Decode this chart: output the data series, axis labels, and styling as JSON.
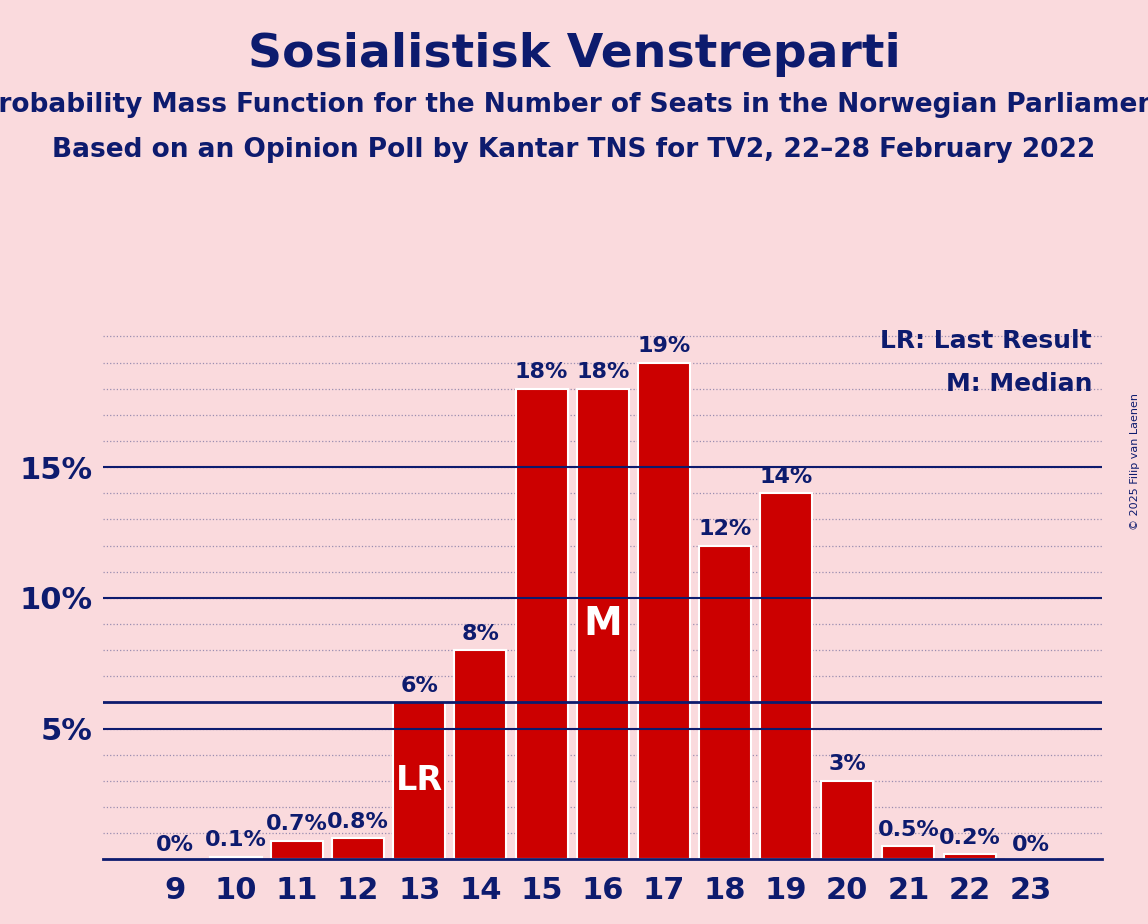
{
  "title": "Sosialistisk Venstreparti",
  "subtitle1": "Probability Mass Function for the Number of Seats in the Norwegian Parliament",
  "subtitle2": "Based on an Opinion Poll by Kantar TNS for TV2, 22–28 February 2022",
  "copyright": "© 2025 Filip van Laenen",
  "categories": [
    9,
    10,
    11,
    12,
    13,
    14,
    15,
    16,
    17,
    18,
    19,
    20,
    21,
    22,
    23
  ],
  "values": [
    0.0,
    0.1,
    0.7,
    0.8,
    6.0,
    8.0,
    18.0,
    18.0,
    19.0,
    12.0,
    14.0,
    3.0,
    0.5,
    0.2,
    0.0
  ],
  "bar_labels": [
    "0%",
    "0.1%",
    "0.7%",
    "0.8%",
    "6%",
    "8%",
    "18%",
    "18%",
    "19%",
    "12%",
    "14%",
    "3%",
    "0.5%",
    "0.2%",
    "0%"
  ],
  "bar_color": "#cc0000",
  "bar_edge_color": "#ffffff",
  "background_color": "#fadadd",
  "text_color": "#0d1b6e",
  "title_fontsize": 34,
  "subtitle_fontsize": 19,
  "axis_label_fontsize": 22,
  "bar_label_fontsize": 16,
  "legend_fontsize": 18,
  "median_seat": 16,
  "lr_seat": 13,
  "lr_line_color": "#0d1b6e",
  "ylim": [
    0,
    20.5
  ],
  "yticks": [
    5,
    10,
    15
  ],
  "ytick_labels": [
    "5%",
    "10%",
    "15%"
  ],
  "grid_color": "#0d1b6e",
  "grid_linestyle": "dotted"
}
